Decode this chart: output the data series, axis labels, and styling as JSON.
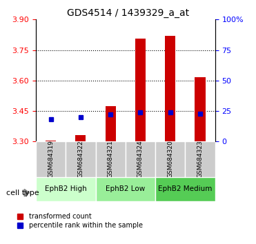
{
  "title": "GDS4514 / 1439329_a_at",
  "samples": [
    "GSM684319",
    "GSM684322",
    "GSM684321",
    "GSM684324",
    "GSM684320",
    "GSM684323"
  ],
  "cell_types_order": [
    "EphB2 High",
    "EphB2 Low",
    "EphB2 Medium"
  ],
  "cell_types": {
    "EphB2 High": [
      0,
      1
    ],
    "EphB2 Low": [
      2,
      3
    ],
    "EphB2 Medium": [
      4,
      5
    ]
  },
  "cell_type_colors": {
    "EphB2 High": "#ccffcc",
    "EphB2 Low": "#99ee99",
    "EphB2 Medium": "#55cc55"
  },
  "transformed_counts": [
    3.305,
    3.33,
    3.475,
    3.805,
    3.82,
    3.615
  ],
  "percentile_ranks_pct": [
    18,
    20,
    22,
    24,
    24,
    23
  ],
  "bar_bottom": 3.3,
  "ylim_left": [
    3.3,
    3.9
  ],
  "ylim_right": [
    0,
    100
  ],
  "yticks_left": [
    3.3,
    3.45,
    3.6,
    3.75,
    3.9
  ],
  "yticks_right": [
    0,
    25,
    50,
    75,
    100
  ],
  "grid_values": [
    3.45,
    3.6,
    3.75
  ],
  "bar_color": "#cc0000",
  "square_color": "#0000cc",
  "bg_color_sample": "#cccccc",
  "legend_items": [
    {
      "label": "transformed count",
      "color": "#cc0000"
    },
    {
      "label": "percentile rank within the sample",
      "color": "#0000cc"
    }
  ]
}
